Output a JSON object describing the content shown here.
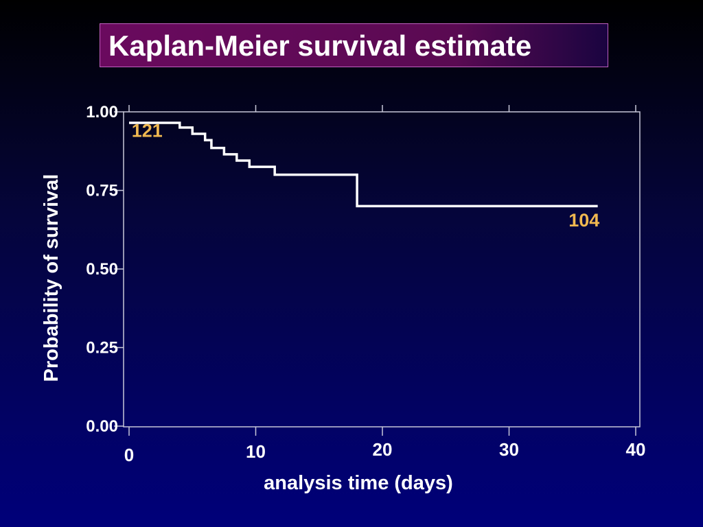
{
  "colors": {
    "axis": "#c8c8d8",
    "curve": "#ffffff",
    "annotation": "#f0b850",
    "text": "#ffffff"
  },
  "chart_data": {
    "type": "line",
    "title": "Kaplan-Meier survival estimate",
    "xlabel": "analysis time (days)",
    "ylabel": "Probability of survival",
    "xlim": [
      0,
      40
    ],
    "ylim": [
      0,
      1
    ],
    "x_ticks": [
      0,
      10,
      20,
      30,
      40
    ],
    "x_tick_labels": [
      "0",
      "10",
      "20",
      "30",
      "40"
    ],
    "y_ticks": [
      0.0,
      0.25,
      0.5,
      0.75,
      1.0
    ],
    "y_tick_labels": [
      "0.00",
      "0.25",
      "0.50",
      "0.75",
      "1.00"
    ],
    "grid": false,
    "legend": "none",
    "series": [
      {
        "step": true,
        "x": [
          0,
          4,
          5,
          6,
          6.5,
          7.5,
          8.5,
          9.5,
          11.5,
          18,
          37
        ],
        "y": [
          0.965,
          0.95,
          0.93,
          0.91,
          0.885,
          0.865,
          0.845,
          0.825,
          0.8,
          0.7,
          0.7
        ]
      }
    ],
    "annotations": [
      {
        "text": "121",
        "x": 0.2,
        "y": 0.92
      },
      {
        "text": "104",
        "x": 34.7,
        "y": 0.635
      }
    ]
  }
}
